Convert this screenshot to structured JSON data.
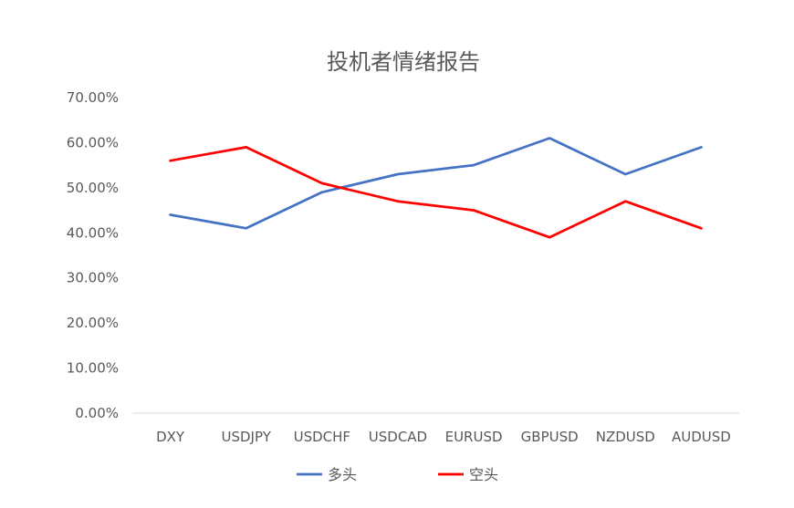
{
  "chart_data": {
    "type": "line",
    "title": "投机者情绪报告",
    "xlabel": "",
    "ylabel": "",
    "categories": [
      "DXY",
      "USDJPY",
      "USDCHF",
      "USDCAD",
      "EURUSD",
      "GBPUSD",
      "NZDUSD",
      "AUDUSD"
    ],
    "y_ticks": [
      "0.00%",
      "10.00%",
      "20.00%",
      "30.00%",
      "40.00%",
      "50.00%",
      "60.00%",
      "70.00%"
    ],
    "ylim": [
      0,
      70
    ],
    "grid": false,
    "legend_position": "bottom",
    "series": [
      {
        "name": "多头",
        "color": "#4472C4",
        "values": [
          44,
          41,
          49,
          53,
          55,
          61,
          53,
          59
        ]
      },
      {
        "name": "空头",
        "color": "#FF0000",
        "values": [
          56,
          59,
          51,
          47,
          45,
          39,
          47,
          41
        ]
      }
    ]
  }
}
